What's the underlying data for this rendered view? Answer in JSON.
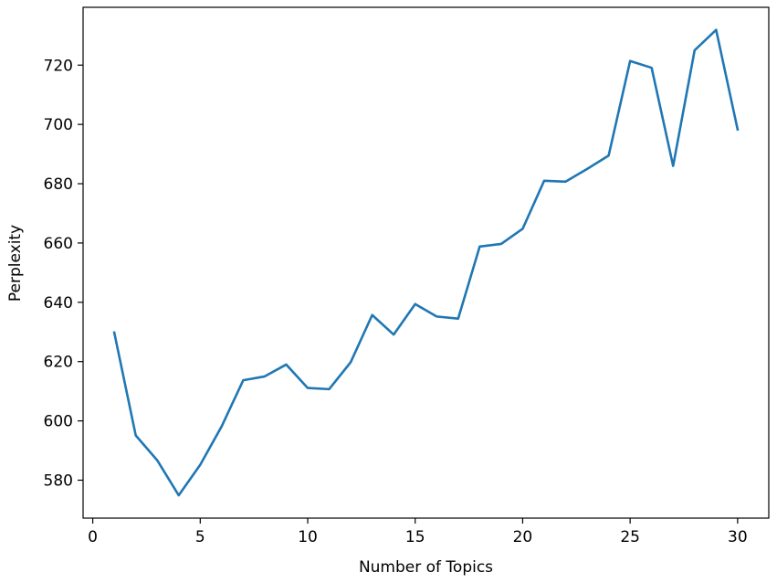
{
  "chart_data": {
    "type": "line",
    "title": "",
    "xlabel": "Number of Topics",
    "ylabel": "Perplexity",
    "xlim": [
      -0.45,
      31.45
    ],
    "ylim": [
      567.2,
      739.5
    ],
    "xticks": [
      0,
      5,
      10,
      15,
      20,
      25,
      30
    ],
    "yticks": [
      580,
      600,
      620,
      640,
      660,
      680,
      700,
      720
    ],
    "grid": false,
    "line_color": "#1f77b4",
    "series": [
      {
        "x": [
          1,
          2,
          3,
          4,
          5,
          6,
          7,
          8,
          9,
          10,
          11,
          12,
          13,
          14,
          15,
          16,
          17,
          18,
          19,
          20,
          21,
          22,
          23,
          24,
          25,
          26,
          27,
          28,
          29,
          30
        ],
        "values": [
          629.8,
          595.1,
          586.7,
          574.9,
          585.2,
          598.2,
          613.7,
          615.0,
          619.0,
          611.1,
          610.7,
          619.8,
          635.7,
          629.1,
          639.4,
          635.2,
          634.5,
          658.8,
          659.7,
          664.8,
          681.0,
          680.7,
          685.0,
          689.5,
          721.4,
          719.1,
          686.0,
          725.0,
          731.9,
          698.3
        ]
      }
    ]
  }
}
